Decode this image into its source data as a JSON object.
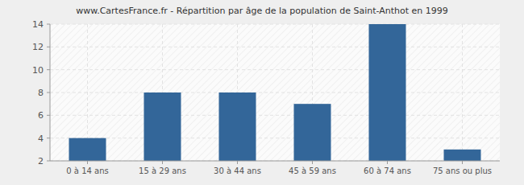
{
  "chart_data": {
    "type": "bar",
    "title": "www.CartesFrance.fr - Répartition par âge de la population de Saint-Anthot en 1999",
    "categories": [
      "0 à 14 ans",
      "15 à 29 ans",
      "30 à 44 ans",
      "45 à 59 ans",
      "60 à 74 ans",
      "75 ans ou plus"
    ],
    "values": [
      4,
      8,
      8,
      7,
      14,
      3
    ],
    "color": "#336699",
    "ylim": [
      2,
      14
    ],
    "yticks": [
      2,
      4,
      6,
      8,
      10,
      12,
      14
    ],
    "grid": true
  }
}
